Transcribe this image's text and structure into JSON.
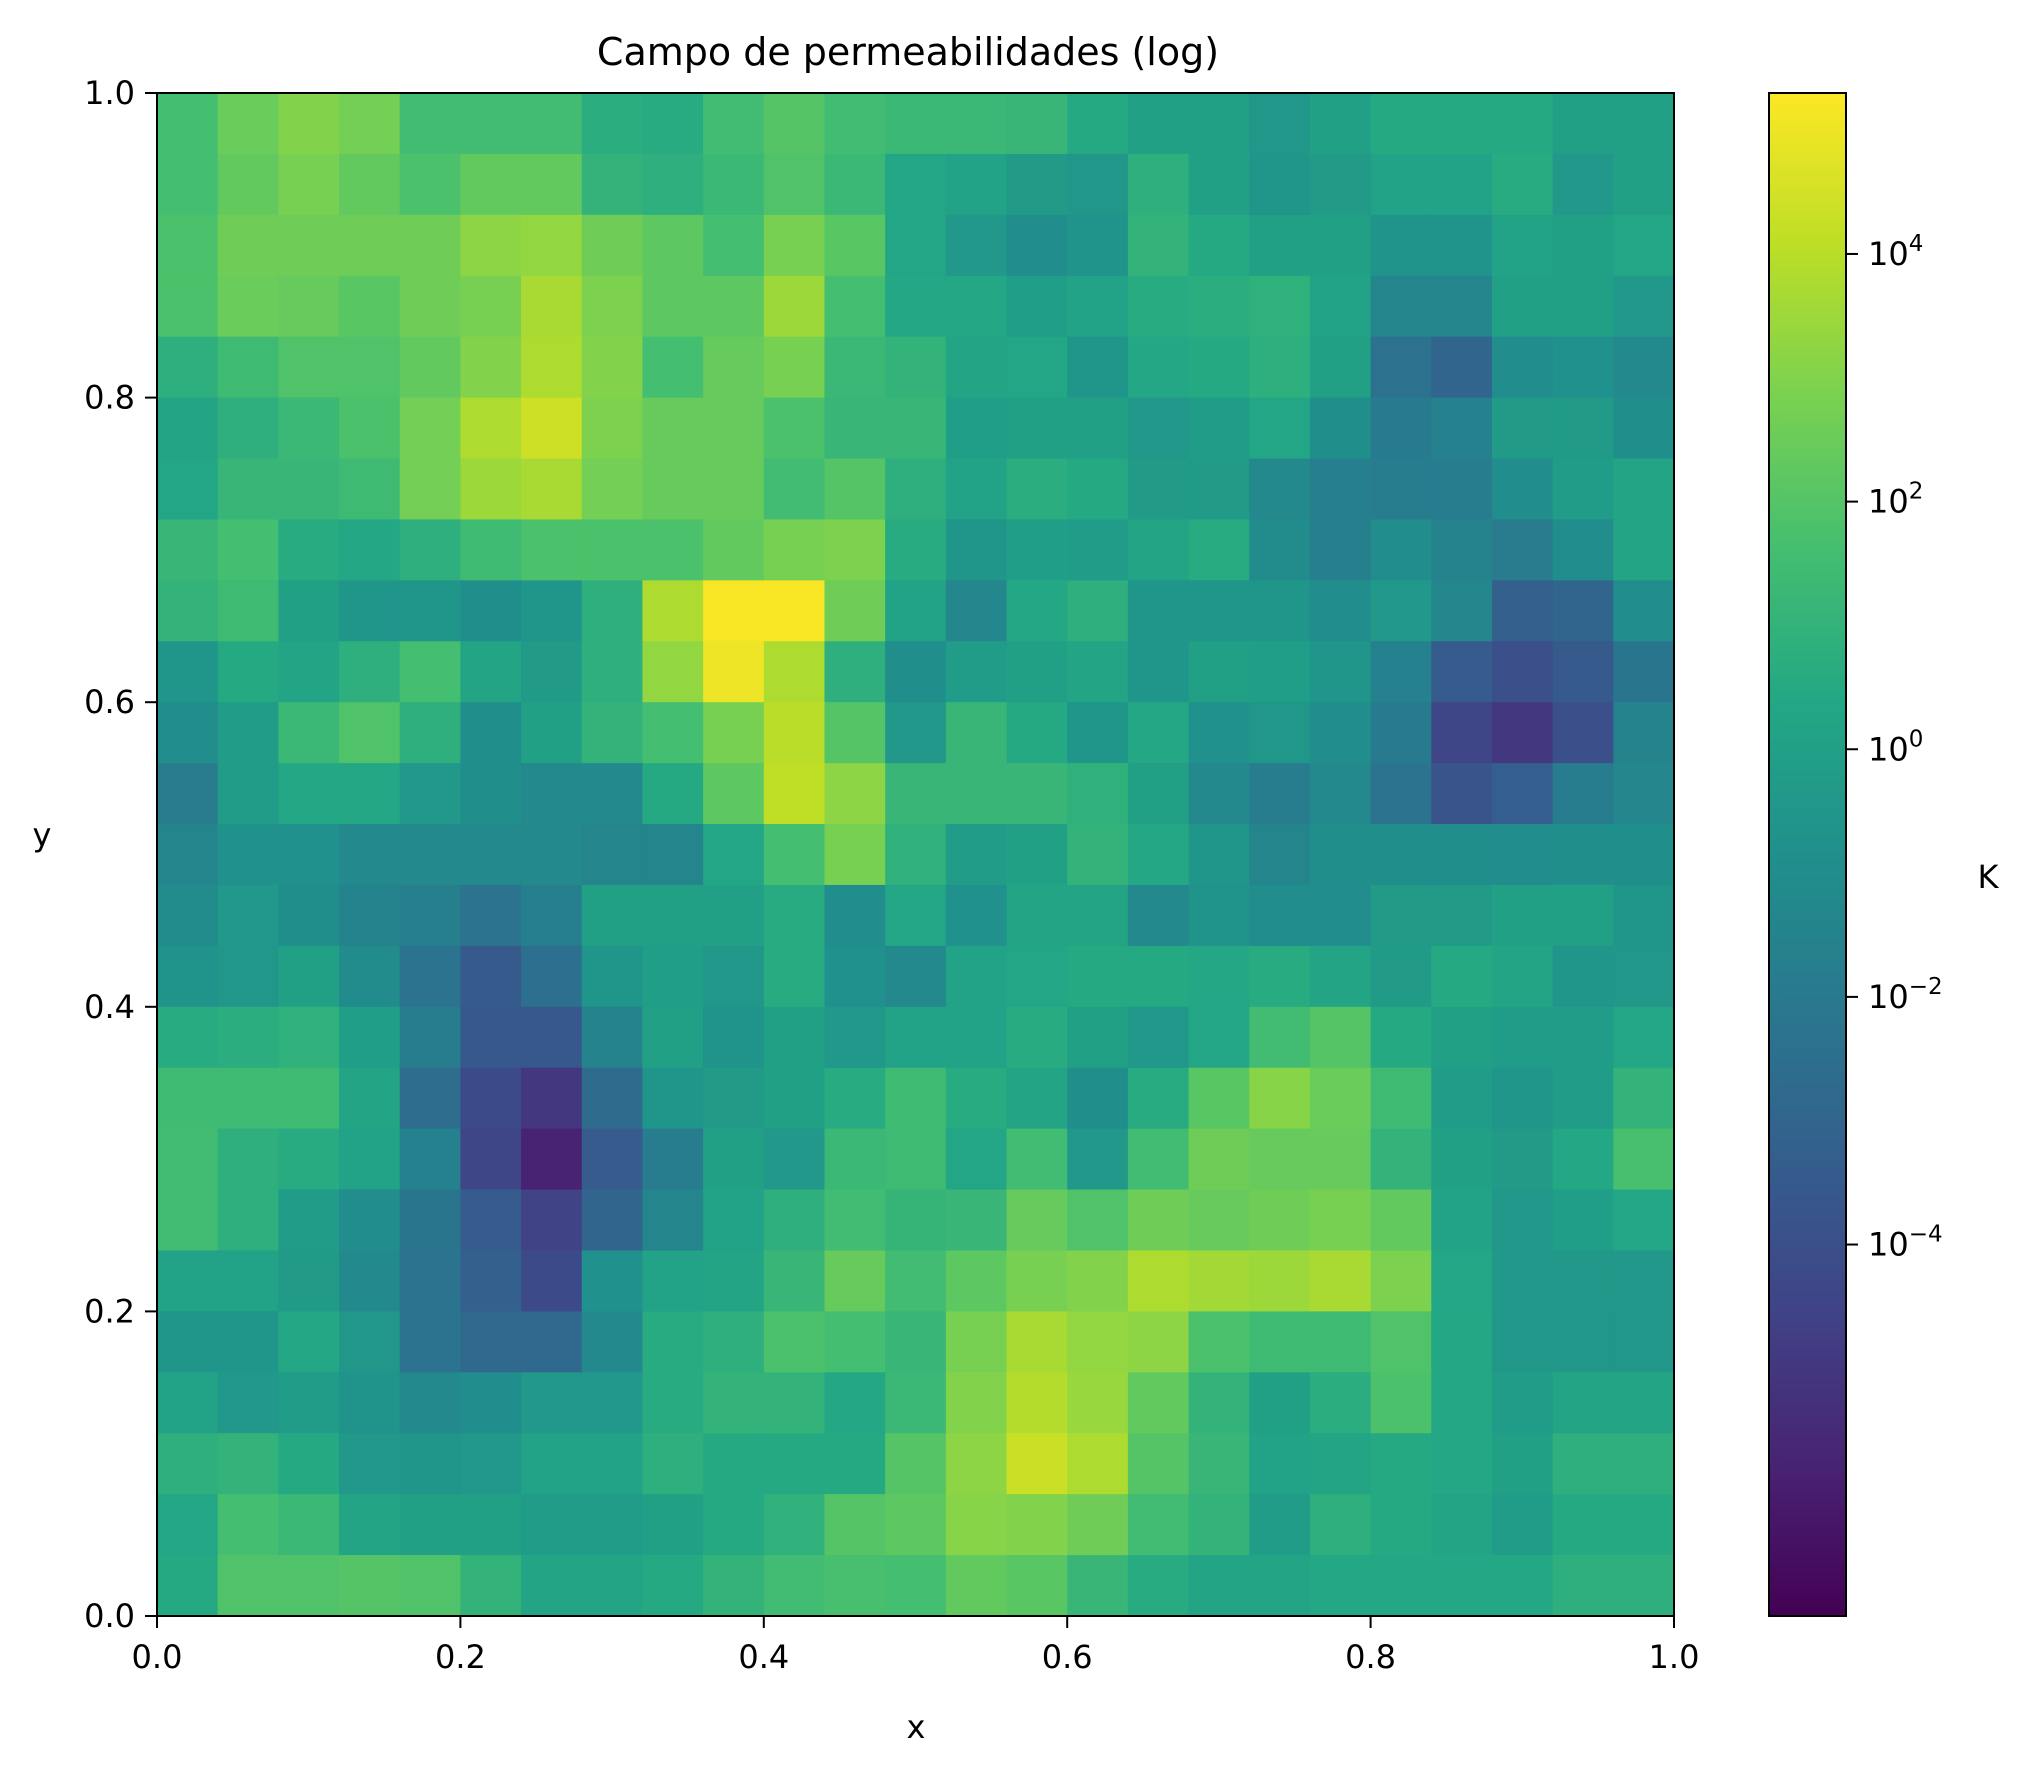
{
  "chart_data": {
    "type": "heatmap",
    "title": "Campo de permeabilidades (log)",
    "xlabel": "x",
    "ylabel": "y",
    "xlim": [
      0.0,
      1.0
    ],
    "ylim": [
      0.0,
      1.0
    ],
    "x_ticks": [
      "0.0",
      "0.2",
      "0.4",
      "0.6",
      "0.8",
      "1.0"
    ],
    "y_ticks": [
      "0.0",
      "0.2",
      "0.4",
      "0.6",
      "0.8",
      "1.0"
    ],
    "grid_size": [
      25,
      25
    ],
    "colormap": "viridis",
    "colorbar": {
      "label": "K",
      "scale": "log",
      "range_log10": [
        -7.0,
        5.3
      ],
      "ticks": [
        {
          "base": "10",
          "exp": "4"
        },
        {
          "base": "10",
          "exp": "2"
        },
        {
          "base": "10",
          "exp": "0"
        },
        {
          "base": "10",
          "exp": "−2"
        },
        {
          "base": "10",
          "exp": "−4"
        }
      ],
      "tick_log10": [
        4,
        2,
        0,
        -2,
        -4
      ]
    },
    "values_log10_rows_top_to_bottom": [
      [
        1.6,
        2.5,
        3.0,
        2.7,
        1.5,
        1.5,
        1.5,
        0.7,
        0.6,
        1.5,
        2.0,
        1.5,
        1.3,
        1.3,
        1.2,
        0.5,
        0.0,
        0.0,
        -0.5,
        0.0,
        0.5,
        0.5,
        0.5,
        0.0,
        0.0
      ],
      [
        1.6,
        2.3,
        2.8,
        2.3,
        1.8,
        2.3,
        2.3,
        1.0,
        0.8,
        1.3,
        1.9,
        1.3,
        0.3,
        0.1,
        -0.3,
        -0.5,
        0.8,
        0.0,
        -0.6,
        -0.3,
        0.1,
        0.1,
        0.6,
        -0.4,
        0.0
      ],
      [
        1.8,
        2.6,
        2.6,
        2.6,
        2.6,
        3.2,
        3.3,
        2.6,
        2.2,
        1.6,
        2.8,
        2.1,
        0.3,
        -0.4,
        -1.0,
        -0.7,
        1.0,
        0.5,
        0.0,
        0.0,
        -0.7,
        -0.7,
        0.1,
        0.0,
        0.3
      ],
      [
        1.8,
        2.5,
        2.4,
        2.1,
        2.6,
        2.8,
        3.7,
        2.9,
        2.2,
        2.2,
        3.5,
        1.6,
        0.4,
        0.4,
        -0.1,
        0.1,
        0.6,
        0.7,
        0.9,
        0.1,
        -1.4,
        -1.4,
        0.0,
        0.0,
        -0.4
      ],
      [
        0.8,
        1.4,
        1.9,
        1.9,
        2.3,
        3.0,
        3.8,
        3.0,
        1.6,
        2.4,
        2.8,
        1.3,
        1.0,
        0.2,
        0.3,
        -0.6,
        0.4,
        0.5,
        0.8,
        0.0,
        -2.4,
        -3.0,
        -1.0,
        -0.8,
        -1.2
      ],
      [
        0.2,
        0.8,
        1.3,
        1.8,
        2.7,
        3.8,
        4.4,
        2.9,
        2.4,
        2.4,
        1.8,
        1.2,
        1.2,
        -0.1,
        0.0,
        0.0,
        -0.4,
        -0.2,
        0.3,
        -0.9,
        -2.0,
        -1.6,
        -0.3,
        -0.3,
        -0.9
      ],
      [
        0.3,
        1.2,
        1.2,
        1.4,
        2.7,
        3.5,
        3.7,
        2.7,
        2.4,
        2.4,
        1.5,
        2.0,
        0.8,
        0.1,
        0.7,
        0.5,
        -0.3,
        -0.3,
        -1.2,
        -1.7,
        -1.8,
        -1.8,
        -1.0,
        -0.2,
        0.2
      ],
      [
        1.2,
        1.6,
        0.6,
        0.4,
        0.8,
        1.4,
        1.8,
        1.8,
        1.8,
        2.3,
        2.8,
        2.9,
        0.6,
        -0.6,
        -0.1,
        -0.2,
        0.2,
        0.6,
        -1.1,
        -1.7,
        -1.0,
        -1.5,
        -1.9,
        -1.0,
        0.2
      ],
      [
        1.0,
        1.4,
        0.0,
        -0.6,
        -0.6,
        -0.9,
        -0.6,
        0.8,
        3.8,
        5.2,
        5.2,
        2.6,
        0.1,
        -1.3,
        0.4,
        0.8,
        -0.6,
        -0.6,
        -0.6,
        -1.0,
        -0.4,
        -1.3,
        -3.2,
        -3.0,
        -1.0
      ],
      [
        -0.6,
        0.5,
        0.2,
        0.8,
        1.6,
        0.2,
        -0.3,
        0.8,
        3.3,
        5.0,
        3.8,
        0.8,
        -0.9,
        -0.2,
        0.0,
        0.2,
        -0.6,
        0.0,
        -0.1,
        -0.6,
        -1.6,
        -3.4,
        -4.0,
        -3.5,
        -2.2
      ],
      [
        -1.0,
        -0.2,
        1.3,
        1.9,
        0.8,
        -0.9,
        0.0,
        1.0,
        1.6,
        2.8,
        4.0,
        2.0,
        -0.4,
        1.2,
        0.5,
        -0.6,
        0.4,
        -0.8,
        -0.5,
        -1.0,
        -2.0,
        -4.4,
        -5.0,
        -4.0,
        -1.5
      ],
      [
        -1.9,
        -0.2,
        0.4,
        0.4,
        -0.4,
        -0.9,
        -1.2,
        -1.2,
        0.5,
        2.2,
        4.1,
        3.2,
        1.2,
        1.2,
        1.2,
        0.9,
        0.0,
        -1.2,
        -1.8,
        -1.2,
        -2.3,
        -3.8,
        -3.3,
        -1.8,
        -1.3
      ],
      [
        -1.4,
        -0.8,
        -0.8,
        -1.2,
        -1.2,
        -1.2,
        -1.2,
        -1.4,
        -1.4,
        0.3,
        1.6,
        2.8,
        0.9,
        -0.2,
        0.0,
        1.0,
        0.4,
        -0.6,
        -1.4,
        -0.9,
        -0.9,
        -0.9,
        -1.0,
        -0.9,
        -0.9
      ],
      [
        -1.1,
        -0.4,
        -0.9,
        -1.5,
        -1.7,
        -2.3,
        -1.7,
        0.0,
        0.0,
        0.0,
        0.6,
        -1.0,
        0.3,
        -0.8,
        0.2,
        0.2,
        -1.2,
        -0.7,
        -1.0,
        -1.0,
        -0.3,
        -0.3,
        0.0,
        0.0,
        -0.6
      ],
      [
        -0.7,
        -0.5,
        0.0,
        -1.1,
        -2.3,
        -3.5,
        -2.5,
        -0.6,
        -0.1,
        -0.5,
        0.6,
        -0.8,
        -1.2,
        0.1,
        0.3,
        0.5,
        0.5,
        0.4,
        0.6,
        0.2,
        -0.3,
        0.5,
        0.2,
        -0.6,
        -0.5
      ],
      [
        0.6,
        0.7,
        0.9,
        -0.1,
        -1.8,
        -3.6,
        -3.6,
        -1.5,
        0.0,
        -0.7,
        0.0,
        -0.4,
        0.1,
        0.1,
        0.6,
        0.0,
        -0.4,
        0.3,
        1.5,
        2.0,
        0.5,
        0.0,
        -0.2,
        -0.2,
        0.3
      ],
      [
        1.4,
        1.4,
        1.4,
        0.2,
        -2.6,
        -4.2,
        -5.0,
        -2.7,
        -0.6,
        -0.3,
        0.0,
        0.6,
        1.4,
        0.6,
        0.2,
        -0.9,
        0.6,
        2.1,
        3.1,
        2.5,
        1.4,
        -0.2,
        -0.6,
        -0.2,
        1.0
      ],
      [
        1.5,
        0.8,
        0.6,
        0.1,
        -1.6,
        -4.4,
        -5.8,
        -3.4,
        -1.8,
        0.0,
        -0.4,
        1.3,
        1.4,
        0.3,
        1.5,
        -0.4,
        1.5,
        2.6,
        2.4,
        2.4,
        1.0,
        0.0,
        -0.3,
        0.4,
        1.7
      ],
      [
        1.5,
        0.8,
        -0.2,
        -1.0,
        -2.2,
        -3.4,
        -4.5,
        -3.0,
        -1.4,
        0.1,
        0.8,
        1.5,
        1.1,
        1.2,
        2.4,
        1.9,
        2.6,
        2.4,
        2.6,
        2.8,
        2.3,
        0.1,
        -0.4,
        -0.1,
        0.3
      ],
      [
        0.1,
        0.1,
        -0.3,
        -1.2,
        -2.3,
        -3.2,
        -4.2,
        -0.8,
        0.1,
        0.2,
        1.2,
        2.4,
        1.5,
        2.2,
        2.8,
        3.0,
        3.8,
        3.6,
        3.5,
        3.7,
        2.9,
        0.3,
        -0.4,
        -0.4,
        -0.4
      ],
      [
        -0.6,
        -0.6,
        0.4,
        -0.5,
        -2.3,
        -2.8,
        -2.8,
        -1.2,
        0.6,
        0.8,
        1.8,
        1.6,
        1.2,
        2.8,
        3.7,
        3.3,
        3.2,
        1.8,
        1.4,
        1.4,
        1.9,
        0.4,
        -0.5,
        -0.5,
        -0.5
      ],
      [
        0.1,
        -0.4,
        -0.2,
        -0.7,
        -1.2,
        -1.0,
        -0.4,
        -0.4,
        0.6,
        1.0,
        1.0,
        0.4,
        1.3,
        3.0,
        3.9,
        3.4,
        2.3,
        1.0,
        0.0,
        0.7,
        1.8,
        0.4,
        -0.2,
        0.2,
        0.2
      ],
      [
        0.8,
        1.0,
        0.5,
        -0.4,
        -0.6,
        -0.4,
        0.1,
        0.1,
        0.8,
        0.5,
        0.5,
        0.5,
        2.0,
        3.2,
        4.3,
        3.8,
        2.0,
        1.2,
        0.1,
        0.2,
        0.5,
        0.4,
        0.0,
        0.8,
        0.8
      ],
      [
        0.3,
        1.6,
        1.3,
        0.2,
        0.0,
        0.0,
        -0.2,
        -0.2,
        0.0,
        0.5,
        0.9,
        2.0,
        2.2,
        3.1,
        3.0,
        2.6,
        1.5,
        1.0,
        -0.2,
        0.8,
        0.5,
        0.2,
        -0.2,
        0.5,
        0.5
      ],
      [
        0.5,
        1.9,
        1.9,
        2.0,
        1.9,
        1.0,
        0.2,
        0.2,
        0.5,
        1.0,
        1.5,
        1.7,
        1.6,
        2.3,
        2.1,
        1.2,
        0.6,
        0.2,
        0.2,
        0.4,
        0.4,
        0.4,
        0.4,
        0.8,
        0.8
      ]
    ]
  }
}
